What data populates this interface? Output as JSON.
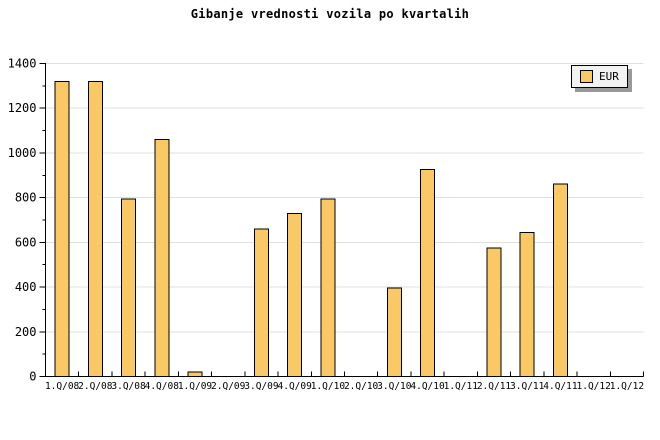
{
  "title": "Gibanje vrednosti vozila po kvartalih",
  "legend": {
    "label": "EUR"
  },
  "colors": {
    "background": "#FFFFFF",
    "bar_fill": "#FAC864",
    "bar_border": "#000000",
    "grid": "#E0E0E0",
    "axis": "#000000",
    "text": "#000000",
    "legend_bg": "#F2F2F2",
    "legend_shadow": "#999999"
  },
  "chart_data": {
    "type": "bar",
    "title": "Gibanje vrednosti vozila po kvartalih",
    "categories": [
      "1.Q/08",
      "2.Q/08",
      "3.Q/08",
      "4.Q/08",
      "1.Q/09",
      "2.Q/09",
      "3.Q/09",
      "4.Q/09",
      "1.Q/10",
      "2.Q/10",
      "3.Q/10",
      "4.Q/10",
      "1.Q/11",
      "2.Q/11",
      "3.Q/11",
      "4.Q/11",
      "1.Q/12",
      "1.Q/12"
    ],
    "series": [
      {
        "name": "EUR",
        "values": [
          1320,
          1320,
          795,
          1060,
          20,
          0,
          660,
          730,
          795,
          0,
          395,
          925,
          0,
          575,
          645,
          860,
          0,
          0
        ]
      }
    ],
    "xlabel": "",
    "ylabel": "",
    "ylim": [
      0,
      1400
    ],
    "ytick_major": 200,
    "ytick_minor": 100,
    "grid": true,
    "legend_position": "top-right"
  }
}
